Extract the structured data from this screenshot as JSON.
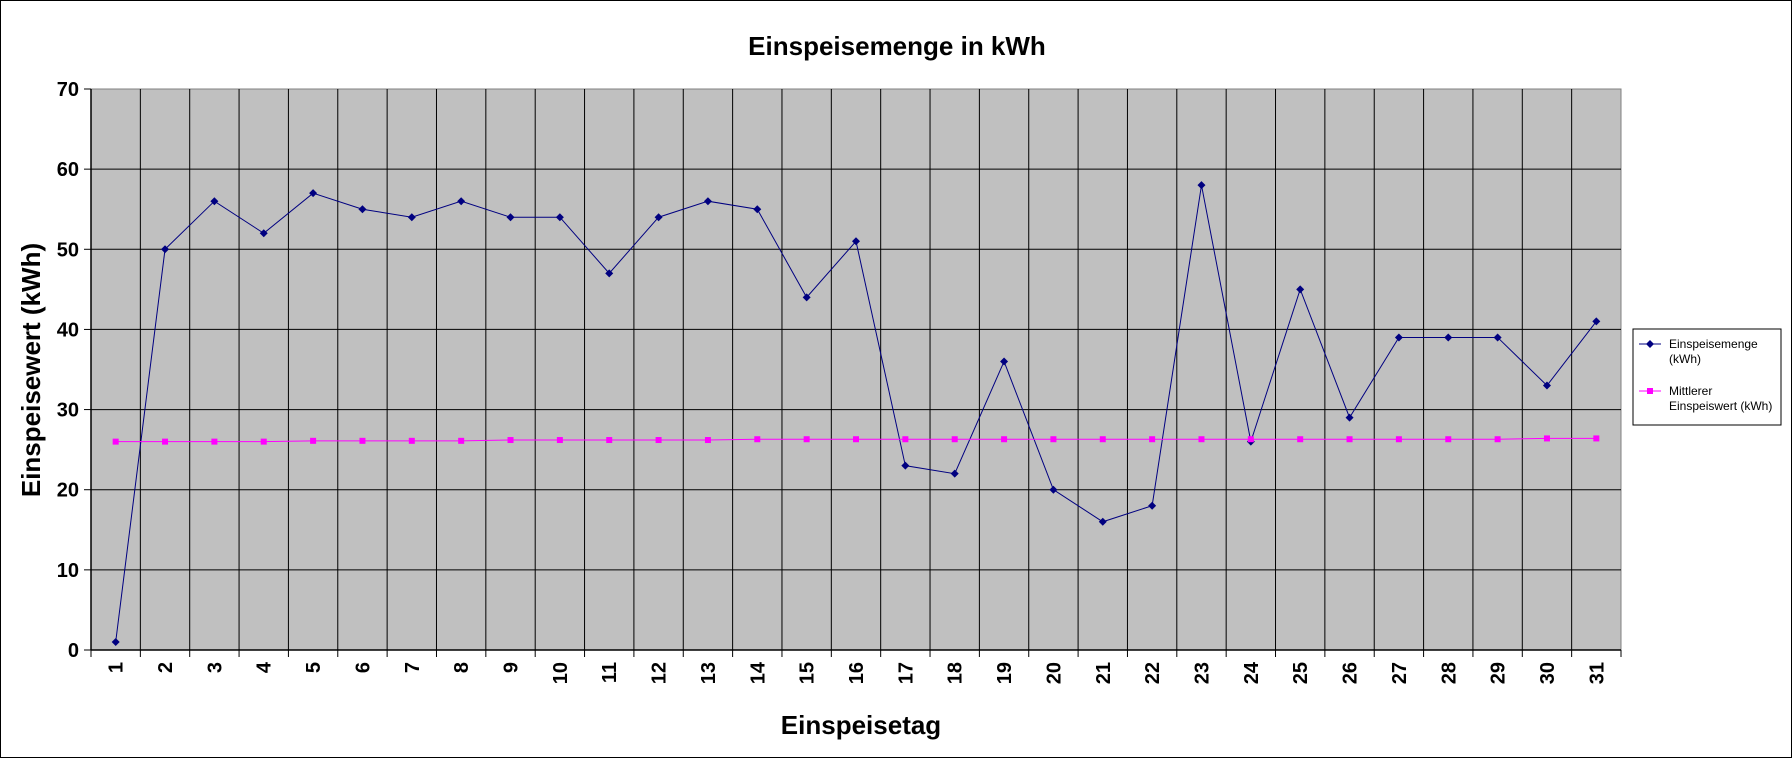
{
  "chart_data": {
    "type": "line",
    "title": "Einspeisemenge in kWh",
    "xlabel": "Einspeisetag",
    "ylabel": "Einspeisewert  (kWh)",
    "ylim": [
      0,
      70
    ],
    "yticks": [
      "0",
      "10",
      "20",
      "30",
      "40",
      "50",
      "60",
      "70"
    ],
    "categories": [
      "1",
      "2",
      "3",
      "4",
      "5",
      "6",
      "7",
      "8",
      "9",
      "10",
      "11",
      "12",
      "13",
      "14",
      "15",
      "16",
      "17",
      "18",
      "19",
      "20",
      "21",
      "22",
      "23",
      "24",
      "25",
      "26",
      "27",
      "28",
      "29",
      "30",
      "31"
    ],
    "grid": true,
    "legend": "right",
    "plot_background": "#c0c0c0",
    "series": [
      {
        "name": "Einspeisemenge (kWh)",
        "legend_lines": [
          "Einspeisemenge",
          "(kWh)"
        ],
        "color": "#000080",
        "marker": "diamond",
        "values": [
          1,
          50,
          56,
          52,
          57,
          55,
          54,
          56,
          54,
          54,
          47,
          54,
          56,
          55,
          44,
          51,
          23,
          22,
          36,
          20,
          16,
          18,
          58,
          26,
          45,
          29,
          39,
          39,
          39,
          33,
          41
        ]
      },
      {
        "name": "Mittlerer Einspeiswert (kWh)",
        "legend_lines": [
          "Mittlerer",
          "Einspeiswert (kWh)"
        ],
        "color": "#ff00ff",
        "marker": "square",
        "values": [
          26,
          26,
          26,
          26,
          26.1,
          26.1,
          26.1,
          26.1,
          26.2,
          26.2,
          26.2,
          26.2,
          26.2,
          26.3,
          26.3,
          26.3,
          26.3,
          26.3,
          26.3,
          26.3,
          26.3,
          26.3,
          26.3,
          26.3,
          26.3,
          26.3,
          26.3,
          26.3,
          26.3,
          26.4,
          26.4
        ]
      }
    ]
  }
}
